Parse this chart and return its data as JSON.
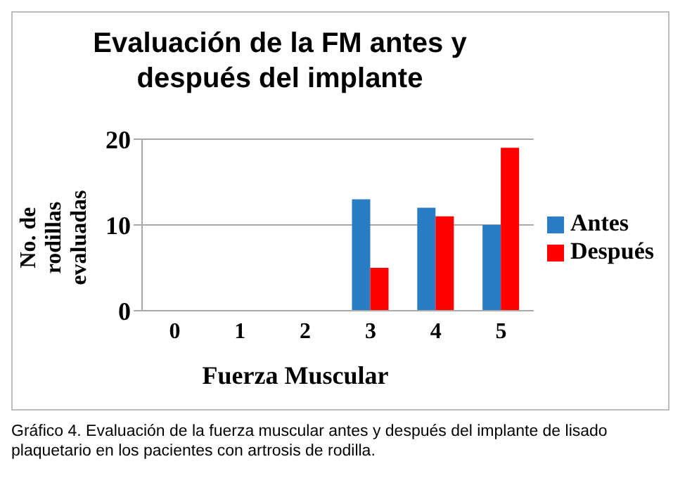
{
  "chart_data": {
    "type": "bar",
    "title": "Evaluación de la FM antes y después del implante",
    "categories": [
      "0",
      "1",
      "2",
      "3",
      "4",
      "5"
    ],
    "series": [
      {
        "name": "Antes",
        "color": "#2a7dc4",
        "values": [
          0,
          0,
          0,
          13,
          12,
          10
        ]
      },
      {
        "name": "Después",
        "color": "#ff0000",
        "values": [
          0,
          0,
          0,
          5,
          11,
          19
        ]
      }
    ],
    "xlabel": "Fuerza Muscular",
    "ylabel": "No. de rodillas evaluadas",
    "ylim": [
      0,
      20
    ],
    "yticks": [
      0,
      10,
      20
    ],
    "grid": "y",
    "legend": "right",
    "annotations": [
      "Gráfico 4. Evaluación de la fuerza muscular antes y después del implante de lisado plaquetario en los pacientes con artrosis de rodilla."
    ]
  }
}
